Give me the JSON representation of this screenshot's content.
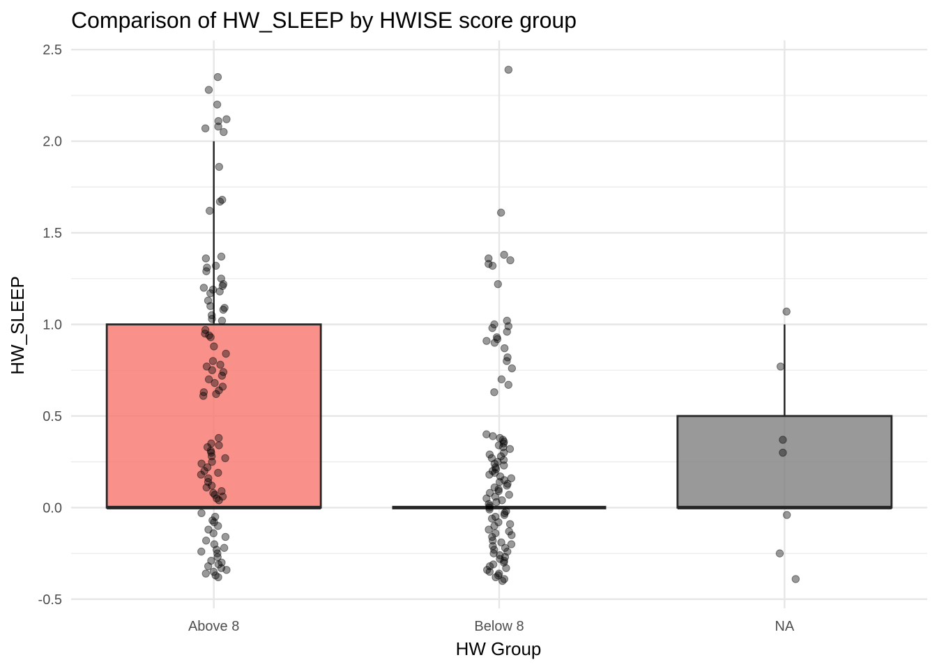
{
  "chart_data": {
    "type": "boxplot",
    "title": "Comparison of HW_SLEEP by HWISE score group",
    "xlabel": "HW Group",
    "ylabel": "HW_SLEEP",
    "categories": [
      "Above 8",
      "Below 8",
      "NA"
    ],
    "ylim": [
      -0.5,
      2.5
    ],
    "yticks": [
      "-0.5",
      "0.0",
      "0.5",
      "1.0",
      "1.5",
      "2.0",
      "2.5"
    ],
    "grid": true,
    "legend": "none",
    "boxes": [
      {
        "category": "Above 8",
        "whisker_low": 0,
        "q1": 0,
        "median": 0,
        "q3": 1,
        "whisker_high": 2,
        "color": "#F8766D"
      },
      {
        "category": "Below 8",
        "whisker_low": 0,
        "q1": 0,
        "median": 0,
        "q3": 0,
        "whisker_high": 0,
        "color": "#00BA38"
      },
      {
        "category": "NA",
        "whisker_low": 0,
        "q1": 0,
        "median": 0,
        "q3": 0.5,
        "whisker_high": 1,
        "color": "#7F7F7F"
      }
    ],
    "points": [
      {
        "category": "Above 8",
        "values": [
          2.35,
          2.28,
          2.2,
          2.12,
          2.11,
          2.08,
          2.07,
          2.05,
          1.86,
          1.68,
          1.67,
          1.62,
          1.37,
          1.36,
          1.32,
          1.31,
          1.29,
          1.25,
          1.22,
          1.21,
          1.2,
          1.19,
          1.18,
          1.17,
          1.13,
          1.1,
          1.09,
          1.08,
          1.05,
          1.03,
          1.02,
          0.97,
          0.95,
          0.94,
          0.93,
          0.88,
          0.84,
          0.8,
          0.78,
          0.77,
          0.75,
          0.74,
          0.72,
          0.7,
          0.68,
          0.66,
          0.64,
          0.63,
          0.62,
          0.61,
          0.38,
          0.35,
          0.34,
          0.33,
          0.31,
          0.3,
          0.28,
          0.27,
          0.25,
          0.24,
          0.22,
          0.2,
          0.19,
          0.18,
          0.16,
          0.14,
          0.12,
          0.11,
          0.09,
          0.08,
          0.07,
          0.06,
          0.05,
          0.04,
          -0.03,
          -0.05,
          -0.07,
          -0.08,
          -0.1,
          -0.12,
          -0.14,
          -0.16,
          -0.18,
          -0.2,
          -0.22,
          -0.23,
          -0.24,
          -0.25,
          -0.27,
          -0.29,
          -0.3,
          -0.31,
          -0.32,
          -0.33,
          -0.34,
          -0.35,
          -0.36,
          -0.37,
          -0.38
        ]
      },
      {
        "category": "Below 8",
        "values": [
          2.39,
          1.61,
          1.38,
          1.36,
          1.35,
          1.33,
          1.32,
          1.22,
          1.02,
          1.0,
          0.99,
          0.98,
          0.96,
          0.93,
          0.92,
          0.91,
          0.9,
          0.87,
          0.82,
          0.8,
          0.76,
          0.7,
          0.67,
          0.63,
          0.4,
          0.39,
          0.38,
          0.37,
          0.36,
          0.35,
          0.34,
          0.33,
          0.32,
          0.3,
          0.29,
          0.28,
          0.27,
          0.26,
          0.25,
          0.24,
          0.23,
          0.22,
          0.21,
          0.2,
          0.19,
          0.18,
          0.17,
          0.16,
          0.15,
          0.14,
          0.13,
          0.12,
          0.11,
          0.1,
          0.09,
          0.08,
          0.07,
          0.06,
          0.05,
          0.04,
          0.03,
          0.02,
          0.01,
          0.0,
          -0.01,
          -0.02,
          -0.03,
          -0.04,
          -0.05,
          -0.06,
          -0.08,
          -0.09,
          -0.1,
          -0.12,
          -0.13,
          -0.14,
          -0.15,
          -0.16,
          -0.18,
          -0.19,
          -0.2,
          -0.21,
          -0.22,
          -0.23,
          -0.24,
          -0.25,
          -0.26,
          -0.27,
          -0.28,
          -0.29,
          -0.3,
          -0.31,
          -0.32,
          -0.33,
          -0.34,
          -0.35,
          -0.36,
          -0.37,
          -0.38,
          -0.39,
          -0.4
        ]
      },
      {
        "category": "NA",
        "values": [
          1.07,
          0.77,
          0.37,
          0.3,
          -0.04,
          -0.25,
          -0.39
        ]
      }
    ]
  }
}
